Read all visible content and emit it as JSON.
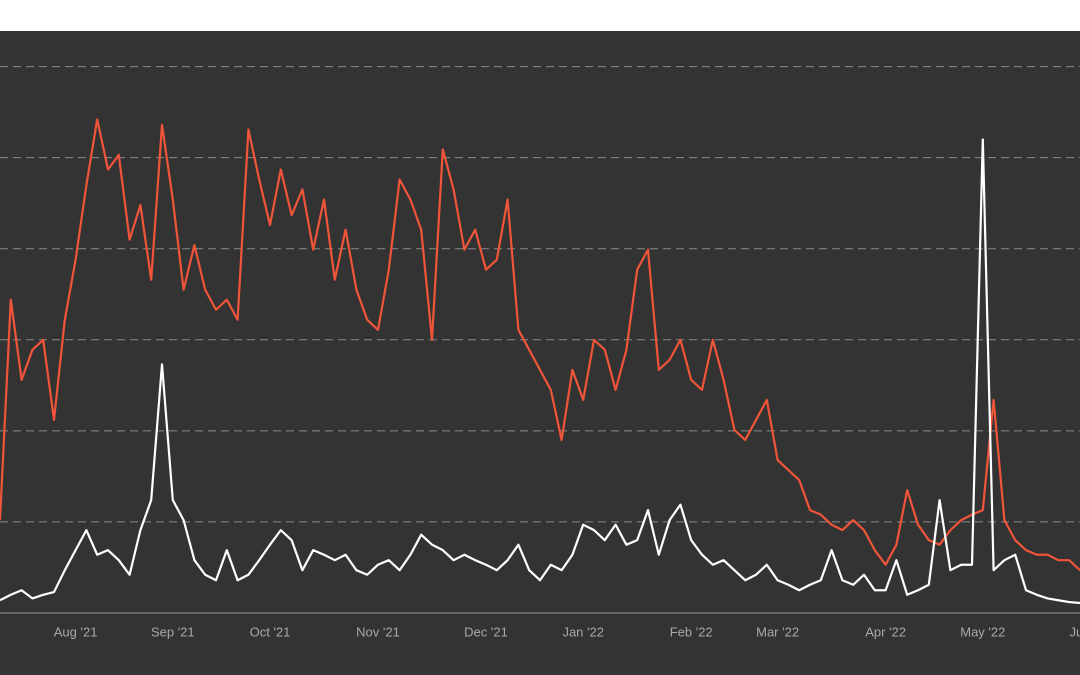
{
  "chart_data": {
    "type": "line",
    "categories": [
      null,
      null,
      null,
      null,
      null,
      null,
      null,
      "Aug '21",
      null,
      null,
      null,
      null,
      null,
      null,
      null,
      null,
      "Sep '21",
      null,
      null,
      null,
      null,
      null,
      null,
      null,
      null,
      "Oct '21",
      null,
      null,
      null,
      null,
      null,
      null,
      null,
      null,
      null,
      "Nov '21",
      null,
      null,
      null,
      null,
      null,
      null,
      null,
      null,
      null,
      "Dec '21",
      null,
      null,
      null,
      null,
      null,
      null,
      null,
      null,
      "Jan '22",
      null,
      null,
      null,
      null,
      null,
      null,
      null,
      null,
      null,
      "Feb '22",
      null,
      null,
      null,
      null,
      null,
      null,
      null,
      "Mar '22",
      null,
      null,
      null,
      null,
      null,
      null,
      null,
      null,
      null,
      "Apr '22",
      null,
      null,
      null,
      null,
      null,
      null,
      null,
      null,
      "May '22",
      null,
      null,
      null,
      null,
      null,
      null,
      null,
      null,
      "Jun"
    ],
    "series": [
      {
        "color": "#f0553a",
        "values": [
          1.02,
          3.44,
          2.56,
          2.89,
          3.0,
          2.12,
          3.22,
          3.88,
          4.7,
          5.42,
          4.87,
          5.03,
          4.1,
          4.48,
          3.66,
          5.36,
          4.54,
          3.55,
          4.04,
          3.55,
          3.33,
          3.44,
          3.22,
          5.31,
          4.76,
          4.26,
          4.87,
          4.37,
          4.65,
          3.99,
          4.54,
          3.66,
          4.21,
          3.55,
          3.22,
          3.11,
          3.77,
          4.76,
          4.54,
          4.21,
          3.0,
          5.09,
          4.65,
          3.99,
          4.21,
          3.77,
          3.88,
          4.54,
          3.11,
          2.89,
          2.67,
          2.45,
          1.9,
          2.67,
          2.34,
          3.0,
          2.89,
          2.45,
          2.89,
          3.77,
          3.99,
          2.67,
          2.78,
          3.0,
          2.56,
          2.45,
          3.0,
          2.56,
          2.01,
          1.9,
          2.12,
          2.34,
          1.68,
          1.57,
          1.46,
          1.13,
          1.08,
          0.97,
          0.91,
          1.02,
          0.91,
          0.69,
          0.53,
          0.75,
          1.35,
          0.97,
          0.8,
          0.75,
          0.91,
          1.02,
          1.08,
          1.13,
          2.34,
          1.02,
          0.8,
          0.69,
          0.64,
          0.64,
          0.58,
          0.58,
          0.47
        ]
      },
      {
        "color": "#ffffff",
        "values": [
          0.14,
          0.2,
          0.25,
          0.16,
          0.2,
          0.23,
          0.47,
          0.69,
          0.91,
          0.64,
          0.69,
          0.58,
          0.42,
          0.91,
          1.24,
          2.73,
          1.24,
          1.02,
          0.58,
          0.42,
          0.36,
          0.69,
          0.36,
          0.42,
          0.58,
          0.75,
          0.91,
          0.8,
          0.47,
          0.69,
          0.64,
          0.58,
          0.64,
          0.47,
          0.42,
          0.53,
          0.58,
          0.47,
          0.64,
          0.86,
          0.75,
          0.69,
          0.58,
          0.64,
          0.58,
          0.53,
          0.47,
          0.58,
          0.75,
          0.47,
          0.36,
          0.53,
          0.47,
          0.64,
          0.97,
          0.91,
          0.8,
          0.97,
          0.75,
          0.8,
          1.13,
          0.64,
          1.02,
          1.19,
          0.8,
          0.64,
          0.53,
          0.58,
          0.47,
          0.36,
          0.42,
          0.53,
          0.36,
          0.31,
          0.25,
          0.31,
          0.36,
          0.69,
          0.36,
          0.31,
          0.42,
          0.25,
          0.25,
          0.58,
          0.2,
          0.25,
          0.31,
          1.24,
          0.47,
          0.53,
          0.53,
          5.2,
          0.47,
          0.58,
          0.64,
          0.25,
          0.2,
          0.16,
          0.14,
          0.12,
          0.11
        ]
      }
    ],
    "ylim": [
      0,
      6.38
    ],
    "yticks": [
      1,
      2,
      3,
      4,
      5,
      6
    ],
    "grid": true
  }
}
